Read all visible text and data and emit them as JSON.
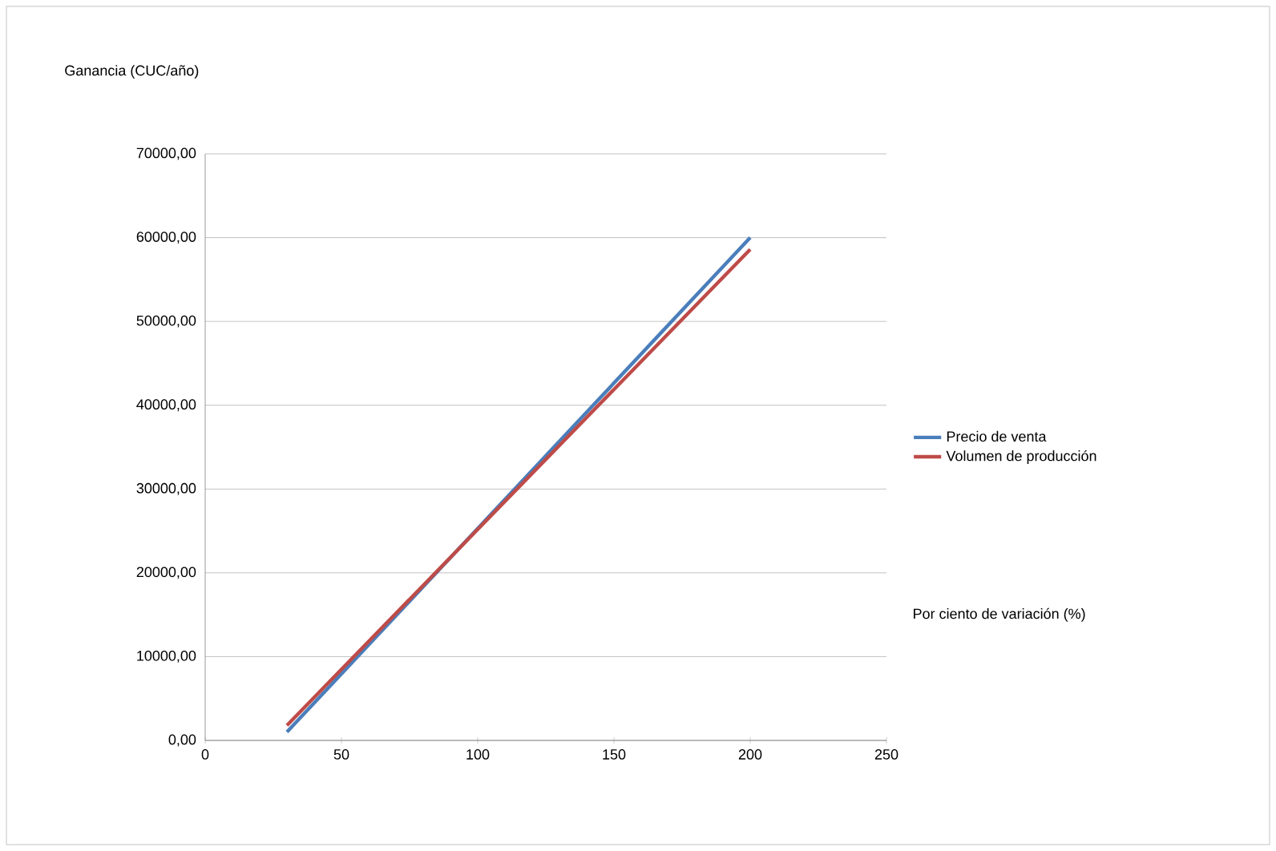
{
  "chart_data": {
    "type": "line",
    "ylabel": "Ganancia (CUC/año)",
    "xlabel": "Por ciento de variación (%)",
    "xlim": [
      0,
      250
    ],
    "xticks": [
      0,
      50,
      100,
      150,
      200,
      250
    ],
    "ylim": [
      0,
      70000
    ],
    "yticks": [
      {
        "value": 0,
        "label": "0,00"
      },
      {
        "value": 10000,
        "label": "10000,00"
      },
      {
        "value": 20000,
        "label": "20000,00"
      },
      {
        "value": 30000,
        "label": "30000,00"
      },
      {
        "value": 40000,
        "label": "40000,00"
      },
      {
        "value": 50000,
        "label": "50000,00"
      },
      {
        "value": 60000,
        "label": "60000,00"
      },
      {
        "value": 70000,
        "label": "70000,00"
      }
    ],
    "x": [
      30,
      200
    ],
    "grid": "y",
    "legend": "right",
    "marker": "none",
    "series": [
      {
        "name": "Precio de venta",
        "color": "#4a7ebb",
        "values": [
          1000,
          60000
        ]
      },
      {
        "name": "Volumen de producción",
        "color": "#be4b48",
        "values": [
          1800,
          58600
        ]
      }
    ]
  }
}
